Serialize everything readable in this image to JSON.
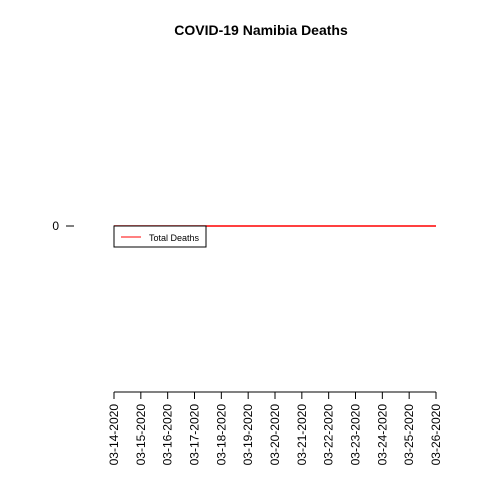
{
  "chart_data": {
    "type": "line",
    "title": "COVID-19 Namibia Deaths",
    "xlabel": "",
    "ylabel": "",
    "x": [
      "03-14-2020",
      "03-15-2020",
      "03-16-2020",
      "03-17-2020",
      "03-18-2020",
      "03-19-2020",
      "03-20-2020",
      "03-21-2020",
      "03-22-2020",
      "03-23-2020",
      "03-24-2020",
      "03-25-2020",
      "03-26-2020"
    ],
    "series": [
      {
        "name": "Total Deaths",
        "color": "#ff0000",
        "values": [
          0,
          0,
          0,
          0,
          0,
          0,
          0,
          0,
          0,
          0,
          0,
          0,
          0
        ]
      }
    ],
    "y_ticks": [
      0
    ],
    "legend": "top-left",
    "grid": false
  }
}
